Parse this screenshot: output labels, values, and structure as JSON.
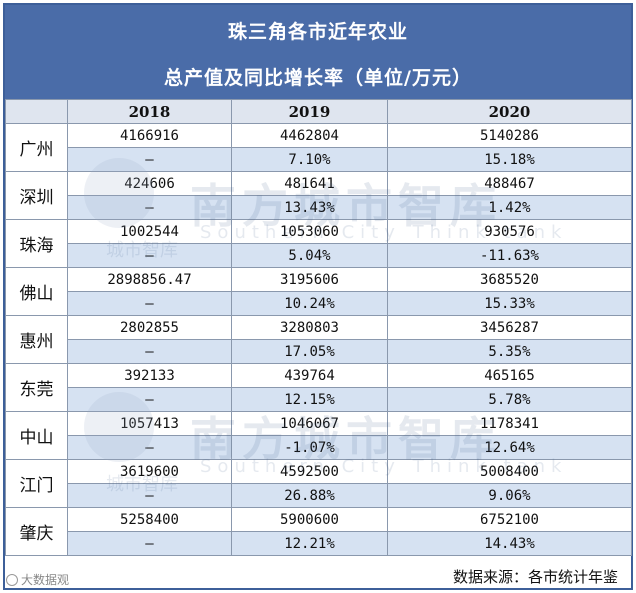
{
  "title": {
    "line1": "珠三角各市近年农业",
    "line2": "总产值及同比增长率（单位/万元）"
  },
  "columns": [
    "",
    "2018",
    "2019",
    "2020"
  ],
  "rows": [
    {
      "city": "广州",
      "values": [
        "4166916",
        "4462804",
        "5140286"
      ],
      "growth": [
        "—",
        "7.10%",
        "15.18%"
      ]
    },
    {
      "city": "深圳",
      "values": [
        "424606",
        "481641",
        "488467"
      ],
      "growth": [
        "—",
        "13.43%",
        "1.42%"
      ]
    },
    {
      "city": "珠海",
      "values": [
        "1002544",
        "1053060",
        "930576"
      ],
      "growth": [
        "—",
        "5.04%",
        "-11.63%"
      ]
    },
    {
      "city": "佛山",
      "values": [
        "2898856.47",
        "3195606",
        "3685520"
      ],
      "growth": [
        "—",
        "10.24%",
        "15.33%"
      ]
    },
    {
      "city": "惠州",
      "values": [
        "2802855",
        "3280803",
        "3456287"
      ],
      "growth": [
        "—",
        "17.05%",
        "5.35%"
      ]
    },
    {
      "city": "东莞",
      "values": [
        "392133",
        "439764",
        "465165"
      ],
      "growth": [
        "—",
        "12.15%",
        "5.78%"
      ]
    },
    {
      "city": "中山",
      "values": [
        "1057413",
        "1046067",
        "1178341"
      ],
      "growth": [
        "—",
        "-1.07%",
        "12.64%"
      ]
    },
    {
      "city": "江门",
      "values": [
        "3619600",
        "4592500",
        "5008400"
      ],
      "growth": [
        "—",
        "26.88%",
        "9.06%"
      ]
    },
    {
      "city": "肇庆",
      "values": [
        "5258400",
        "5900600",
        "6752100"
      ],
      "growth": [
        "—",
        "12.21%",
        "14.43%"
      ]
    }
  ],
  "footer": {
    "source": "数据来源：各市统计年鉴",
    "brand": "大数据观"
  },
  "watermark": {
    "main": "南方城市智库",
    "sub": "Southern  City  Think  tank",
    "logo_text": "城市智库"
  }
}
